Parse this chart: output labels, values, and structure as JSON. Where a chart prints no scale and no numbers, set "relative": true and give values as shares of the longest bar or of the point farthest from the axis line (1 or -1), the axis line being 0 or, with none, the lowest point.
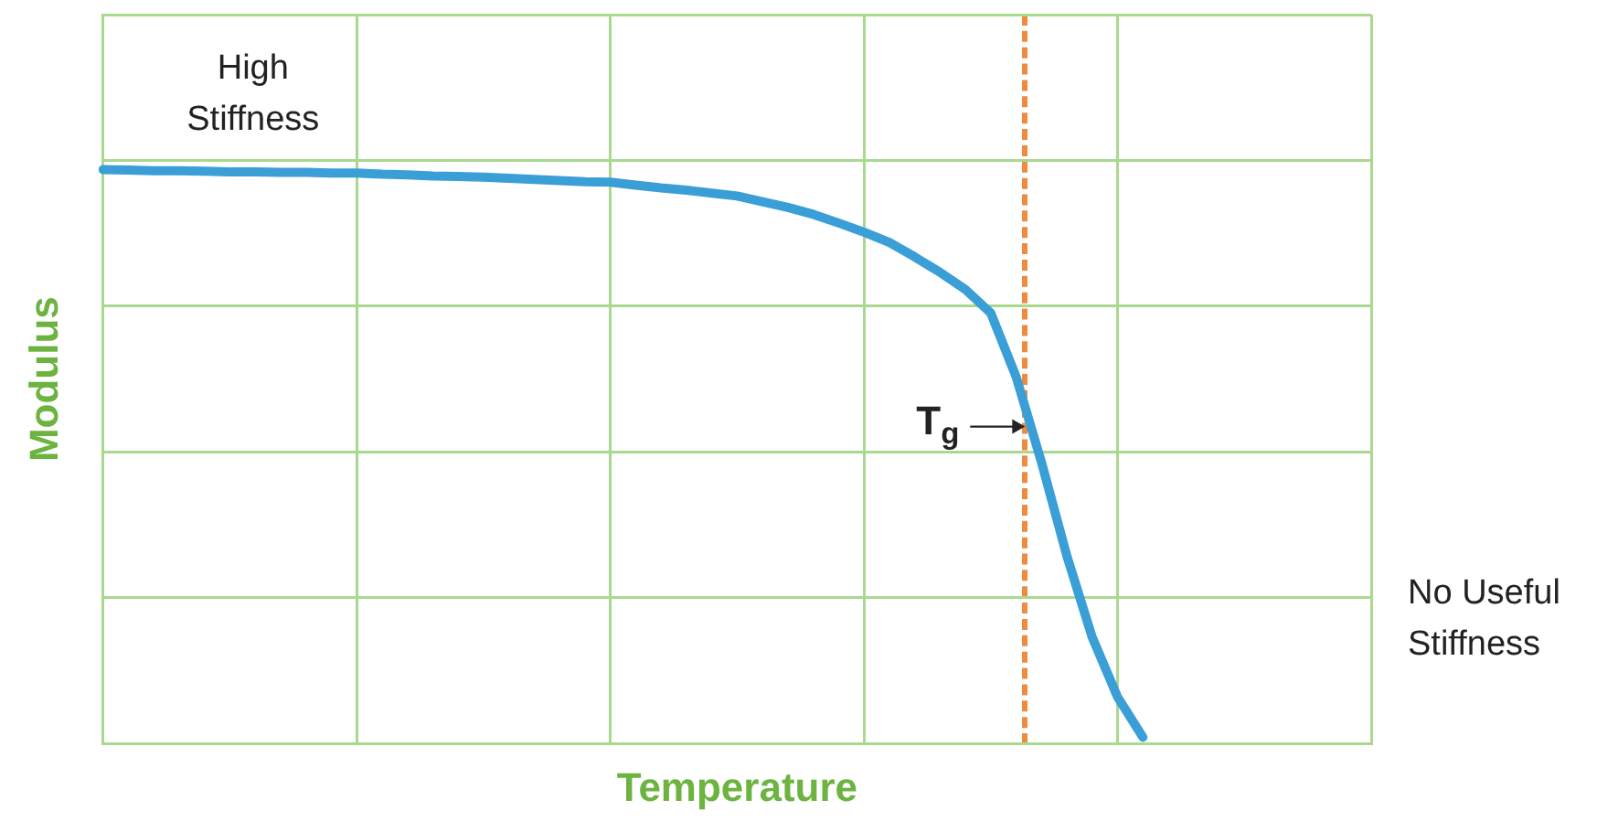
{
  "chart_data": {
    "type": "line",
    "relative": true,
    "xlabel": "Temperature",
    "ylabel": "Modulus",
    "categories": [
      null,
      null,
      null,
      null,
      null,
      null,
      null,
      null,
      null,
      null,
      null,
      null,
      null,
      null,
      null,
      null,
      null,
      null,
      null,
      null,
      null,
      null,
      null,
      null,
      null,
      null,
      null,
      null,
      null,
      null,
      null,
      null,
      null,
      null,
      null,
      null,
      null,
      null,
      null,
      null,
      null,
      null,
      null,
      null,
      null,
      null,
      null,
      null,
      null,
      null,
      null
    ],
    "series": [
      {
        "color": "#3a9fd6",
        "values": [
          1,
          0.999,
          0.998,
          0.998,
          0.997,
          0.996,
          0.996,
          0.995,
          0.995,
          0.994,
          0.994,
          0.992,
          0.991,
          0.989,
          0.988,
          0.987,
          0.985,
          0.983,
          0.981,
          0.979,
          0.978,
          0.973,
          0.968,
          0.964,
          0.959,
          0.954,
          0.944,
          0.934,
          0.922,
          0.907,
          0.891,
          0.873,
          0.848,
          0.821,
          0.791,
          0.75,
          0.639,
          0.49,
          0.327,
          0.185,
          0.081,
          0.011,
          null,
          null,
          null,
          null,
          null,
          null,
          null,
          null,
          null
        ]
      }
    ],
    "annotations": [
      "High Stiffness",
      "No Useful Stiffness",
      "T$_{g}$"
    ],
    "grid": true,
    "marker": "none",
    "line_style": "solid"
  }
}
